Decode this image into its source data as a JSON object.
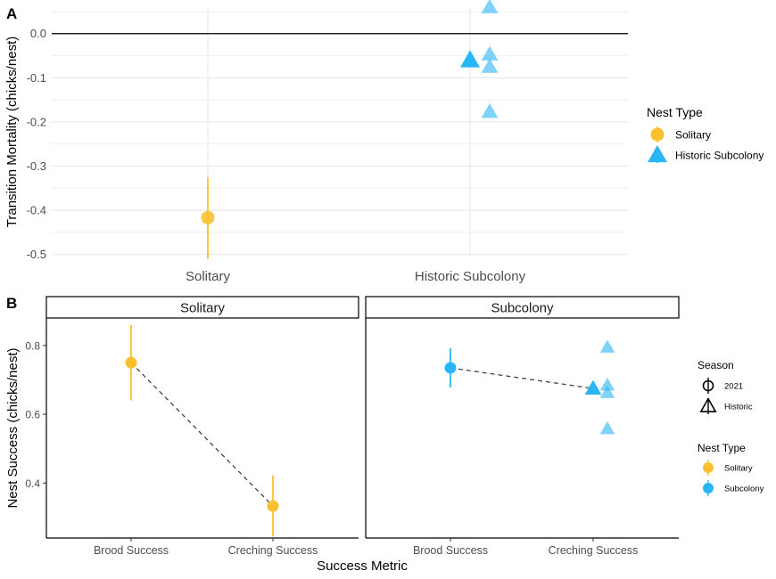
{
  "colors": {
    "solitary": "#FBC02D",
    "subcolony": "#29B6F6",
    "zero_line": "#000000",
    "dashed": "#444444",
    "grid": "#EBEBEB"
  },
  "chart_data": [
    {
      "panel_tag": "A",
      "type": "scatter",
      "ylabel": "Transition Mortality (chicks/nest)",
      "xlabel": "",
      "categories": [
        "Solitary",
        "Historic Subcolony"
      ],
      "ylim": [
        -0.505,
        0.06
      ],
      "y_ticks": [
        "0.0",
        "-0.1",
        "-0.2",
        "-0.3",
        "-0.4",
        "-0.5"
      ],
      "y_tick_values": [
        0.0,
        -0.1,
        -0.2,
        -0.3,
        -0.4,
        -0.5
      ],
      "reference_line_y": 0,
      "grid": true,
      "legend": {
        "title": "Nest Type",
        "position": "right",
        "items": [
          {
            "label": "Solitary",
            "shape": "circle",
            "color_key": "solitary"
          },
          {
            "label": "Historic Subcolony",
            "shape": "triangle",
            "color_key": "subcolony"
          }
        ]
      },
      "series": [
        {
          "name": "Solitary",
          "category": "Solitary",
          "shape": "circle",
          "color_key": "solitary",
          "mean": -0.417,
          "ci": [
            -0.51,
            -0.325
          ],
          "points": []
        },
        {
          "name": "Historic Subcolony",
          "category": "Historic Subcolony",
          "shape": "triangle",
          "color_key": "subcolony",
          "mean": -0.06,
          "ci": null,
          "points": [
            0.06,
            -0.047,
            -0.075,
            -0.177
          ]
        }
      ]
    },
    {
      "panel_tag": "B",
      "type": "scatter",
      "ylabel": "Nest Success (chicks/nest)",
      "xlabel": "Success Metric",
      "categories": [
        "Brood Success",
        "Creching Success"
      ],
      "ylim": [
        0.24,
        0.88
      ],
      "y_ticks": [
        "0.8",
        "0.6",
        "0.4"
      ],
      "y_tick_values": [
        0.8,
        0.6,
        0.4
      ],
      "grid": false,
      "facets": [
        {
          "strip": "Solitary",
          "color_key": "solitary",
          "points": [
            {
              "category": "Brood Success",
              "season": "2021",
              "value": 0.75,
              "ci": [
                0.64,
                0.86
              ]
            },
            {
              "category": "Creching Success",
              "season": "2021",
              "value": 0.333,
              "ci": [
                0.245,
                0.422
              ]
            }
          ],
          "historic": []
        },
        {
          "strip": "Subcolony",
          "color_key": "subcolony",
          "points": [
            {
              "category": "Brood Success",
              "season": "2021",
              "value": 0.735,
              "ci": [
                0.678,
                0.792
              ]
            },
            {
              "category": "Creching Success",
              "season": "Historic",
              "value": 0.675,
              "ci": null
            }
          ],
          "historic": [
            0.795,
            0.685,
            0.663,
            0.558
          ]
        }
      ],
      "legends": [
        {
          "title": "Season",
          "items": [
            {
              "label": "2021",
              "shape": "circle-open"
            },
            {
              "label": "Historic",
              "shape": "triangle-open"
            }
          ]
        },
        {
          "title": "Nest Type",
          "items": [
            {
              "label": "Solitary",
              "shape": "circle",
              "color_key": "solitary"
            },
            {
              "label": "Subcolony",
              "shape": "circle",
              "color_key": "subcolony"
            }
          ]
        }
      ]
    }
  ]
}
